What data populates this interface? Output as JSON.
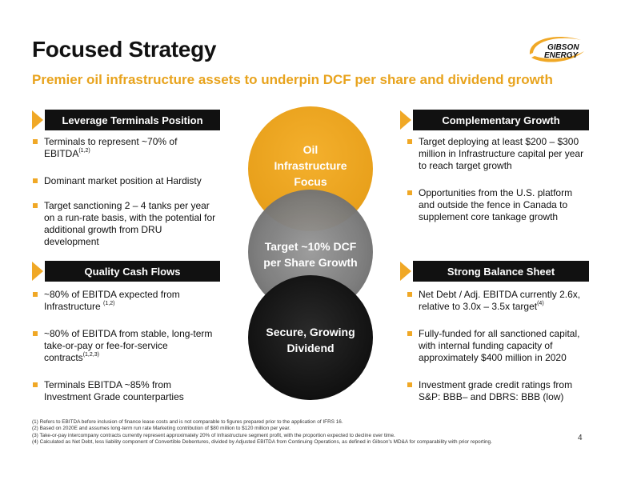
{
  "header": {
    "title": "Focused Strategy",
    "subtitle": "Premier oil infrastructure assets to underpin DCF per share and dividend growth",
    "logo_line1": "GIBSON",
    "logo_line2": "ENERGY"
  },
  "colors": {
    "accent": "#f0a826",
    "dark": "#111111",
    "grey": "#7a7a7a"
  },
  "sections": {
    "leverage": {
      "heading": "Leverage Terminals Position",
      "items": [
        {
          "text": "Terminals to represent ~70% of EBITDA",
          "sup": "(1,2)"
        },
        {
          "text": "Dominant market position at Hardisty",
          "sup": ""
        },
        {
          "text": "Target sanctioning 2 – 4 tanks per year on a run-rate basis, with the potential for additional growth from DRU development",
          "sup": ""
        }
      ]
    },
    "quality": {
      "heading": "Quality Cash Flows",
      "items": [
        {
          "text": "~80% of EBITDA expected from Infrastructure ",
          "sup": "(1,2)"
        },
        {
          "text": "~80% of EBITDA from stable, long-term take-or-pay or fee-for-service contracts",
          "sup": "(1,2,3)"
        },
        {
          "text": "Terminals EBITDA ~85% from Investment Grade counterparties",
          "sup": ""
        }
      ]
    },
    "growth": {
      "heading": "Complementary Growth",
      "items": [
        {
          "text": "Target deploying at least $200 – $300 million in Infrastructure capital per year to reach target growth",
          "sup": ""
        },
        {
          "text": "Opportunities from the U.S. platform and outside the fence in Canada to supplement core tankage growth",
          "sup": ""
        }
      ]
    },
    "balance": {
      "heading": "Strong Balance Sheet",
      "items": [
        {
          "text": "Net Debt / Adj. EBITDA currently 2.6x, relative to 3.0x – 3.5x target",
          "sup": "(4)"
        },
        {
          "text": "Fully-funded for all sanctioned capital, with internal funding capacity of approximately $400 million in 2020",
          "sup": ""
        },
        {
          "text": "Investment grade credit ratings from S&P: BBB– and DBRS: BBB (low)",
          "sup": ""
        }
      ]
    }
  },
  "circles": {
    "top": "Oil Infrastructure Focus",
    "middle": "Target ~10% DCF per Share Growth",
    "bottom": "Secure, Growing Dividend"
  },
  "footnotes": [
    "(1) Refers to EBITDA before inclusion of finance lease costs and is not comparable to figures prepared prior to the application of IFRS 16.",
    "(2) Based on 2020E and assumes long-term run rate Marketing contribution of $80 million to $120 million per year.",
    "(3) Take-or-pay intercompany contracts currently represent approximately 20% of Infrastructure segment profit, with the proportion expected to decline over time.",
    "(4) Calculated as Net Debt, less liability component of Convertible Debentures, divided by Adjusted EBITDA from Continuing Operations, as defined in Gibson's MD&A for comparability with prior reporting."
  ],
  "page_number": "4"
}
